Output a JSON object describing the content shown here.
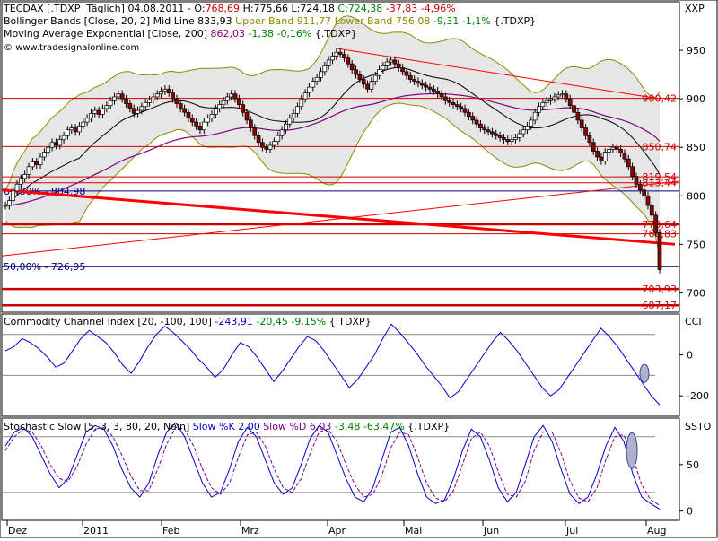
{
  "main": {
    "symbol": "TECDAX [.TDXP",
    "interval": "Täglich]",
    "date": "04.08.2011",
    "open_label": "O:",
    "open": "768,69",
    "high_label": "H:",
    "high": "775,66",
    "low_label": "L:",
    "low": "724,18",
    "close_label": "C:",
    "close": "724,38",
    "change": "-37,83",
    "change_pct": "-4,96%",
    "bb_label": "Bollinger Bands [Close, 20, 2] Mid Line",
    "bb_mid": "833,93",
    "bb_upper_label": "Upper Band",
    "bb_upper": "911,77",
    "bb_lower_label": "Lower Band",
    "bb_lower": "756,08",
    "bb_change": "-9,31",
    "bb_change_pct": "-1,1%",
    "bb_source": "{.TDXP}",
    "ema_label": "Moving Average Exponential [Close, 200]",
    "ema_value": "862,03",
    "ema_change": "-1,38",
    "ema_change_pct": "-0,16%",
    "ema_source": "{.TDXP}",
    "website": "www.tradesignalonline.com",
    "axis_title": "XXP"
  },
  "cci": {
    "label": "Commodity Channel Index [20, -100, 100]",
    "value": "-243,91",
    "change": "-20,45",
    "change_pct": "-9,15%",
    "source": "{.TDXP}",
    "axis_title": "CCI"
  },
  "stoch": {
    "label": "Stochastic Slow [5, 3, 3, 80, 20, Nein]",
    "k_label": "Slow %K",
    "k_value": "2,00",
    "d_label": "Slow %D",
    "d_value": "6,03",
    "change": "-3,48",
    "change_pct": "-63,47%",
    "source": "{.TDXP}",
    "axis_title": "SSTO"
  },
  "colors": {
    "candle_up": "#ffffff",
    "candle_down": "#8b0000",
    "bb_band": "#8b8b00",
    "bb_fill": "#e6e6e6",
    "bb_mid": "#000000",
    "ema": "#800080",
    "trend_red": "#ff0000",
    "fib_blue": "#000080",
    "hline_red": "#cc0000",
    "cci_line": "#0000cc",
    "stoch_k": "#0000cc",
    "stoch_d": "#800080"
  },
  "chart_data": {
    "type": "candlestick",
    "x_labels": [
      "Dez",
      "2011",
      "Feb",
      "Mrz",
      "Apr",
      "Mai",
      "Jun",
      "Jul",
      "Aug"
    ],
    "price_axis": {
      "ticks": [
        700,
        750,
        800,
        850,
        900,
        950
      ],
      "range": [
        680,
        1000
      ]
    },
    "close": [
      790,
      795,
      805,
      812,
      818,
      822,
      830,
      835,
      832,
      840,
      845,
      850,
      855,
      852,
      858,
      862,
      868,
      870,
      866,
      872,
      876,
      880,
      885,
      888,
      884,
      890,
      893,
      898,
      902,
      905,
      900,
      895,
      890,
      885,
      888,
      892,
      896,
      899,
      902,
      905,
      908,
      910,
      906,
      900,
      895,
      890,
      886,
      880,
      876,
      872,
      868,
      876,
      880,
      884,
      890,
      894,
      898,
      902,
      905,
      900,
      894,
      886,
      878,
      870,
      862,
      855,
      850,
      848,
      852,
      856,
      862,
      868,
      874,
      880,
      885,
      892,
      900,
      906,
      912,
      918,
      922,
      928,
      934,
      940,
      944,
      948,
      946,
      942,
      936,
      930,
      925,
      920,
      915,
      910,
      918,
      924,
      930,
      934,
      938,
      940,
      936,
      932,
      928,
      924,
      920,
      918,
      916,
      914,
      912,
      910,
      908,
      905,
      902,
      898,
      896,
      894,
      892,
      890,
      886,
      882,
      878,
      874,
      870,
      868,
      866,
      864,
      862,
      860,
      858,
      856,
      858,
      860,
      864,
      868,
      872,
      878,
      886,
      892,
      896,
      898,
      900,
      902,
      904,
      905,
      900,
      893,
      886,
      878,
      870,
      862,
      855,
      846,
      840,
      836,
      845,
      848,
      850,
      848,
      844,
      838,
      830,
      820,
      812,
      806,
      800,
      790,
      780,
      762,
      724
    ],
    "bollinger": {
      "mid": 833.93,
      "upper": 911.77,
      "lower": 756.08
    },
    "ema200": 862.03,
    "horizontal_levels": [
      {
        "value": 900.42,
        "label": "900,42"
      },
      {
        "value": 850.74,
        "label": "850,74"
      },
      {
        "value": 819.54,
        "label": "819,54"
      },
      {
        "value": 813.44,
        "label": "813,44"
      },
      {
        "value": 770.64,
        "label": "770,64"
      },
      {
        "value": 760.83,
        "label": "760,83"
      },
      {
        "value": 703.93,
        "label": "703,93"
      },
      {
        "value": 687.17,
        "label": "687,17"
      }
    ],
    "fib_levels": [
      {
        "value": 804.98,
        "label": "61,80% - 804,98"
      },
      {
        "value": 726.95,
        "label": "50,00% - 726,95"
      }
    ],
    "cci_axis": {
      "ticks": [
        0,
        -200
      ],
      "range": [
        -300,
        200
      ]
    },
    "cci": [
      20,
      40,
      80,
      60,
      30,
      -10,
      -60,
      -40,
      20,
      80,
      120,
      90,
      60,
      10,
      -50,
      -90,
      -30,
      40,
      100,
      140,
      110,
      70,
      30,
      -20,
      -60,
      -110,
      -70,
      0,
      60,
      40,
      -10,
      -70,
      -130,
      -80,
      -20,
      40,
      90,
      70,
      20,
      -40,
      -100,
      -160,
      -120,
      -60,
      0,
      80,
      150,
      110,
      60,
      10,
      -50,
      -100,
      -150,
      -210,
      -180,
      -120,
      -60,
      0,
      60,
      110,
      70,
      20,
      -40,
      -100,
      -160,
      -200,
      -170,
      -110,
      -50,
      10,
      70,
      130,
      90,
      40,
      -20,
      -80,
      -140,
      -200,
      -244
    ],
    "stoch_axis": {
      "ticks": [
        50,
        0
      ],
      "range": [
        -10,
        100
      ]
    },
    "stoch_k": [
      70,
      85,
      90,
      80,
      60,
      40,
      25,
      35,
      60,
      85,
      92,
      88,
      70,
      45,
      25,
      15,
      30,
      60,
      85,
      95,
      80,
      55,
      30,
      15,
      20,
      45,
      75,
      90,
      80,
      55,
      30,
      18,
      25,
      50,
      78,
      92,
      85,
      60,
      35,
      15,
      10,
      25,
      55,
      85,
      90,
      70,
      40,
      15,
      8,
      12,
      35,
      65,
      88,
      80,
      55,
      25,
      10,
      20,
      50,
      80,
      92,
      75,
      45,
      18,
      8,
      15,
      40,
      70,
      90,
      75,
      40,
      15,
      8,
      2
    ],
    "stoch_d": [
      65,
      80,
      88,
      85,
      70,
      50,
      35,
      32,
      48,
      72,
      88,
      90,
      80,
      60,
      38,
      22,
      22,
      45,
      72,
      90,
      88,
      70,
      45,
      25,
      18,
      30,
      58,
      82,
      85,
      70,
      45,
      25,
      20,
      35,
      62,
      85,
      88,
      75,
      50,
      28,
      15,
      18,
      38,
      68,
      85,
      82,
      58,
      30,
      14,
      10,
      22,
      50,
      78,
      85,
      70,
      42,
      18,
      15,
      32,
      65,
      85,
      85,
      62,
      32,
      14,
      10,
      25,
      55,
      80,
      82,
      58,
      28,
      12,
      6
    ]
  }
}
